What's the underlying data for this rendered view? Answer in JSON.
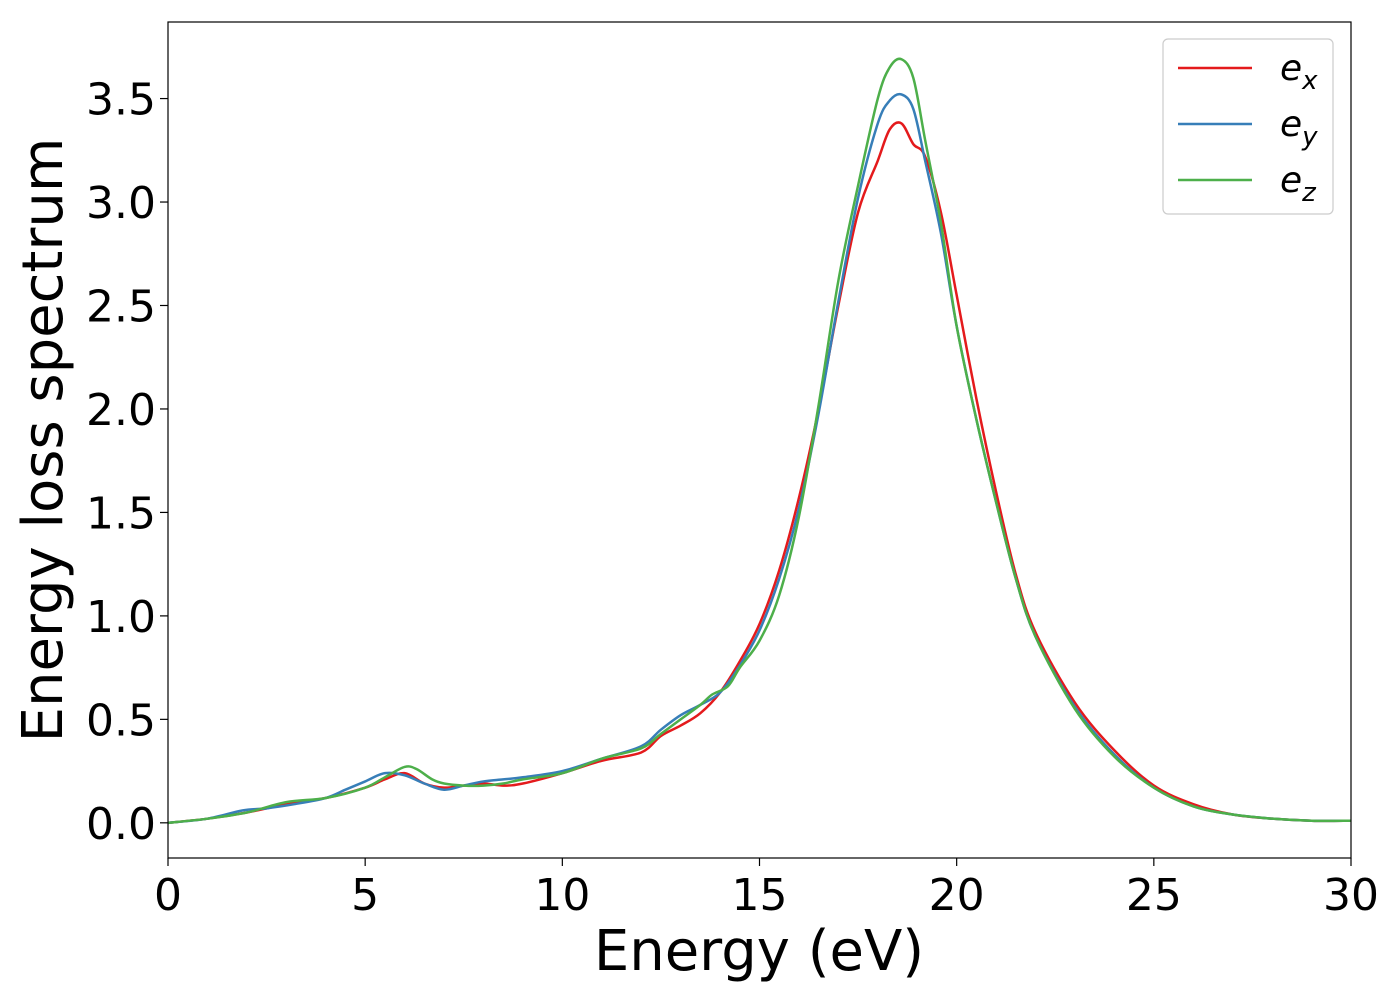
{
  "chart_data": {
    "type": "line",
    "title": "",
    "xlabel": "Energy (eV)",
    "ylabel": "Energy loss spectrum",
    "xlim": [
      0,
      30
    ],
    "ylim": [
      -0.17,
      3.87
    ],
    "xticks": [
      0,
      5,
      10,
      15,
      20,
      25,
      30
    ],
    "xtick_labels": [
      "0",
      "5",
      "10",
      "15",
      "20",
      "25",
      "30"
    ],
    "yticks": [
      0.0,
      0.5,
      1.0,
      1.5,
      2.0,
      2.5,
      3.0,
      3.5
    ],
    "ytick_labels": [
      "0.0",
      "0.5",
      "1.0",
      "1.5",
      "2.0",
      "2.5",
      "3.0",
      "3.5"
    ],
    "grid": false,
    "legend_position": "top-right",
    "series": [
      {
        "name": "e_x",
        "legend_base": "e",
        "legend_sub": "x",
        "color": "#e41a1c",
        "x": [
          0,
          1,
          2,
          3,
          4,
          5,
          5.5,
          6,
          6.5,
          7,
          7.5,
          8,
          8.5,
          9,
          10,
          11,
          12,
          12.5,
          13,
          13.5,
          14,
          14.5,
          15,
          15.5,
          16,
          16.5,
          17,
          17.5,
          18,
          18.3,
          18.6,
          18.9,
          19.2,
          19.6,
          20,
          20.5,
          21,
          21.5,
          22,
          23,
          24,
          25,
          26,
          27,
          28,
          29,
          30
        ],
        "y": [
          0.0,
          0.02,
          0.05,
          0.09,
          0.12,
          0.17,
          0.21,
          0.24,
          0.19,
          0.17,
          0.18,
          0.19,
          0.18,
          0.19,
          0.24,
          0.3,
          0.34,
          0.42,
          0.47,
          0.53,
          0.63,
          0.78,
          0.96,
          1.22,
          1.57,
          2.0,
          2.5,
          2.95,
          3.2,
          3.35,
          3.38,
          3.28,
          3.22,
          2.95,
          2.55,
          2.05,
          1.6,
          1.2,
          0.92,
          0.58,
          0.35,
          0.18,
          0.09,
          0.04,
          0.02,
          0.01,
          0.01
        ]
      },
      {
        "name": "e_y",
        "legend_base": "e",
        "legend_sub": "y",
        "color": "#377eb8",
        "x": [
          0,
          1,
          1.9,
          2.5,
          3.2,
          4,
          4.5,
          5,
          5.5,
          6,
          6.5,
          7,
          7.5,
          8,
          8.5,
          9,
          10,
          11,
          12,
          12.5,
          13,
          13.5,
          14,
          14.5,
          15,
          15.5,
          16,
          16.5,
          17,
          17.5,
          18,
          18.3,
          18.6,
          18.9,
          19.2,
          19.6,
          20,
          20.5,
          21,
          21.5,
          22,
          23,
          24,
          25,
          26,
          27,
          28,
          29,
          30
        ],
        "y": [
          0.0,
          0.02,
          0.06,
          0.07,
          0.09,
          0.12,
          0.16,
          0.2,
          0.24,
          0.23,
          0.19,
          0.16,
          0.18,
          0.2,
          0.21,
          0.22,
          0.25,
          0.31,
          0.37,
          0.45,
          0.52,
          0.57,
          0.63,
          0.76,
          0.93,
          1.18,
          1.52,
          1.98,
          2.52,
          3.02,
          3.38,
          3.49,
          3.52,
          3.45,
          3.2,
          2.85,
          2.4,
          1.95,
          1.55,
          1.18,
          0.9,
          0.56,
          0.33,
          0.17,
          0.08,
          0.04,
          0.02,
          0.01,
          0.01
        ]
      },
      {
        "name": "e_z",
        "legend_base": "e",
        "legend_sub": "z",
        "color": "#4daf4a",
        "x": [
          0,
          1,
          2,
          3,
          4,
          5,
          5.5,
          6,
          6.3,
          6.7,
          7,
          7.5,
          8,
          8.5,
          9,
          10,
          11,
          12,
          12.5,
          13,
          13.5,
          13.8,
          14.2,
          14.5,
          15,
          15.5,
          16,
          16.5,
          17,
          17.5,
          18,
          18.3,
          18.6,
          18.9,
          19.2,
          19.6,
          20,
          20.5,
          21,
          21.5,
          22,
          23,
          24,
          25,
          26,
          27,
          28,
          29,
          30
        ],
        "y": [
          0.0,
          0.02,
          0.05,
          0.1,
          0.12,
          0.17,
          0.22,
          0.27,
          0.26,
          0.21,
          0.19,
          0.18,
          0.18,
          0.19,
          0.21,
          0.24,
          0.31,
          0.36,
          0.43,
          0.5,
          0.57,
          0.62,
          0.66,
          0.75,
          0.88,
          1.1,
          1.48,
          2.02,
          2.62,
          3.08,
          3.5,
          3.65,
          3.69,
          3.6,
          3.3,
          2.9,
          2.4,
          1.95,
          1.55,
          1.18,
          0.9,
          0.55,
          0.32,
          0.17,
          0.08,
          0.04,
          0.02,
          0.01,
          0.01
        ]
      }
    ]
  }
}
